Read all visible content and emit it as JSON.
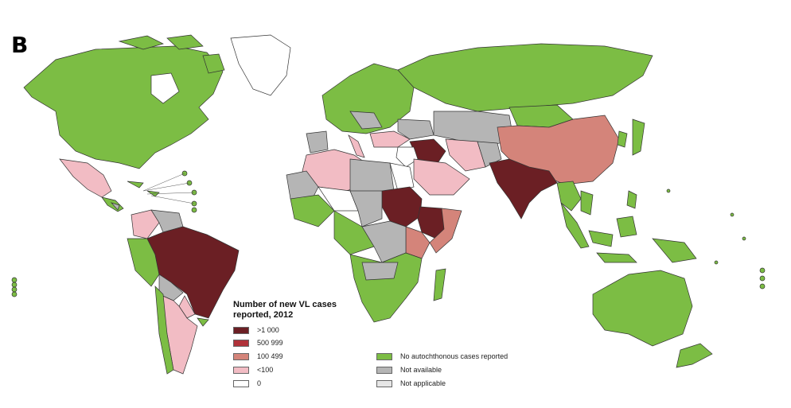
{
  "panel_label": "B",
  "legend": {
    "title_line1": "Number of new VL cases",
    "title_line2": "reported, 2012",
    "items": [
      {
        "label": ">1 000",
        "color": "#6b1f24"
      },
      {
        "label": "500 999",
        "color": "#b03239"
      },
      {
        "label": "100 499",
        "color": "#d4847a"
      },
      {
        "label": "<100",
        "color": "#f2bcc4"
      },
      {
        "label": "0",
        "color": "#ffffff"
      },
      {
        "label": "No autochthonous cases reported",
        "color": "#7cbd44"
      },
      {
        "label": "Not available",
        "color": "#b5b5b5"
      },
      {
        "label": "Not applicable",
        "color": "#e6e6e6"
      }
    ]
  }
}
